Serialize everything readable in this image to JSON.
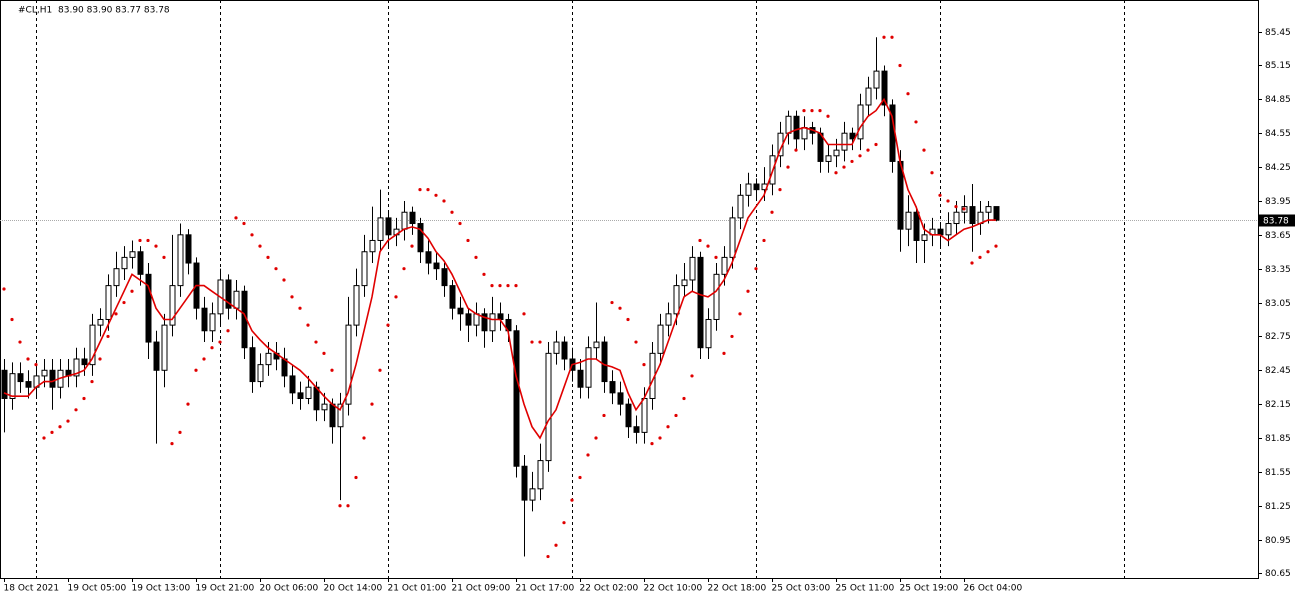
{
  "chart_data": {
    "type": "candlestick",
    "title": "#CL,H1",
    "info": "83.90 83.90 83.77 83.78",
    "xlim": [
      -0.5,
      156.75
    ],
    "ylim": [
      80.61,
      85.73
    ],
    "yticks": [
      85.45,
      85.15,
      84.85,
      84.55,
      84.25,
      83.95,
      83.65,
      83.35,
      83.05,
      82.75,
      82.45,
      82.15,
      81.85,
      81.55,
      81.25,
      80.95,
      80.65
    ],
    "xticks": [
      {
        "value": 0,
        "label": "18 Oct 2021"
      },
      {
        "value": 8,
        "label": "19 Oct 05:00"
      },
      {
        "value": 16,
        "label": "19 Oct 13:00"
      },
      {
        "value": 24,
        "label": "19 Oct 21:00"
      },
      {
        "value": 32,
        "label": "20 Oct 06:00"
      },
      {
        "value": 40,
        "label": "20 Oct 14:00"
      },
      {
        "value": 48,
        "label": "21 Oct 01:00"
      },
      {
        "value": 56,
        "label": "21 Oct 09:00"
      },
      {
        "value": 64,
        "label": "21 Oct 17:00"
      },
      {
        "value": 72,
        "label": "22 Oct 02:00"
      },
      {
        "value": 80,
        "label": "22 Oct 10:00"
      },
      {
        "value": 88,
        "label": "22 Oct 18:00"
      },
      {
        "value": 96,
        "label": "25 Oct 03:00"
      },
      {
        "value": 104,
        "label": "25 Oct 11:00"
      },
      {
        "value": 112,
        "label": "25 Oct 19:00"
      },
      {
        "value": 120,
        "label": "26 Oct 04:00"
      }
    ],
    "vgrid": [
      4,
      27,
      48,
      71,
      94,
      117,
      140
    ],
    "last_price": 83.78,
    "up_color": "#ffffff",
    "down_color": "#000000",
    "open": [
      82.45,
      82.2,
      82.42,
      82.35,
      82.3,
      82.4,
      82.45,
      82.3,
      82.45,
      82.4,
      82.55,
      82.5,
      82.85,
      82.9,
      83.2,
      83.35,
      83.45,
      83.5,
      83.3,
      82.7,
      82.45,
      82.85,
      83.2,
      83.65,
      83.4,
      83.0,
      82.8,
      82.95,
      83.25,
      83.0,
      83.15,
      82.65,
      82.35,
      82.5,
      82.6,
      82.55,
      82.4,
      82.25,
      82.2,
      82.3,
      82.1,
      82.15,
      81.95,
      82.15,
      82.85,
      83.2,
      83.5,
      83.6,
      83.8,
      83.65,
      83.7,
      83.85,
      83.75,
      83.5,
      83.4,
      83.35,
      83.2,
      83.0,
      82.95,
      82.85,
      82.95,
      82.8,
      82.95,
      82.9,
      82.8,
      81.6,
      81.3,
      81.4,
      81.65,
      82.6,
      82.7,
      82.55,
      82.45,
      82.3,
      82.65,
      82.7,
      82.35,
      82.25,
      82.15,
      81.95,
      81.9,
      82.2,
      82.6,
      82.85,
      82.95,
      83.2,
      83.25,
      83.45,
      82.65,
      82.9,
      83.3,
      83.45,
      83.8,
      84.0,
      84.1,
      84.05,
      84.1,
      84.35,
      84.55,
      84.7,
      84.5,
      84.6,
      84.55,
      84.3,
      84.35,
      84.4,
      84.55,
      84.5,
      84.8,
      84.95,
      85.1,
      84.8,
      84.3,
      83.7,
      83.85,
      83.6,
      83.65,
      83.7,
      83.65,
      83.75,
      83.85,
      83.9,
      83.75,
      83.85,
      83.9
    ],
    "high": [
      82.55,
      82.52,
      82.52,
      82.45,
      82.5,
      82.55,
      82.55,
      82.55,
      82.55,
      82.65,
      82.65,
      82.95,
      83.0,
      83.3,
      83.5,
      83.55,
      83.6,
      83.55,
      83.4,
      82.8,
      82.95,
      83.65,
      83.75,
      83.7,
      83.45,
      83.1,
      83.05,
      83.35,
      83.3,
      83.25,
      83.2,
      82.75,
      82.6,
      82.7,
      82.7,
      82.65,
      82.5,
      82.35,
      82.4,
      82.35,
      82.25,
      82.2,
      82.25,
      83.1,
      83.35,
      83.65,
      83.9,
      84.05,
      83.85,
      83.8,
      83.95,
      83.9,
      83.8,
      83.6,
      83.5,
      83.4,
      83.25,
      83.1,
      83.0,
      83.05,
      83.0,
      83.1,
      83.05,
      82.95,
      82.85,
      81.7,
      81.55,
      81.8,
      82.7,
      82.8,
      82.75,
      82.65,
      82.55,
      82.75,
      83.05,
      82.75,
      82.45,
      82.35,
      82.2,
      82.05,
      82.3,
      82.7,
      82.95,
      83.05,
      83.3,
      83.4,
      83.55,
      83.5,
      83.0,
      83.4,
      83.55,
      83.9,
      84.1,
      84.2,
      84.15,
      84.25,
      84.45,
      84.65,
      84.75,
      84.75,
      84.7,
      84.65,
      84.6,
      84.45,
      84.5,
      84.65,
      84.6,
      84.9,
      85.05,
      85.4,
      85.15,
      84.85,
      84.4,
      84.0,
      83.9,
      83.75,
      83.8,
      83.75,
      83.85,
      83.95,
      84.0,
      84.1,
      83.95,
      83.95,
      83.9
    ],
    "low": [
      81.9,
      82.1,
      82.25,
      82.2,
      82.2,
      82.3,
      82.1,
      82.2,
      82.3,
      82.3,
      82.4,
      82.4,
      82.75,
      82.8,
      83.1,
      83.25,
      83.35,
      83.2,
      82.55,
      81.8,
      82.3,
      82.75,
      83.1,
      83.3,
      82.9,
      82.7,
      82.7,
      82.85,
      82.9,
      82.9,
      82.55,
      82.25,
      82.3,
      82.4,
      82.45,
      82.3,
      82.15,
      82.1,
      82.15,
      82.0,
      82.0,
      81.8,
      81.3,
      82.05,
      82.75,
      83.1,
      83.4,
      83.5,
      83.55,
      83.55,
      83.6,
      83.65,
      83.4,
      83.3,
      83.25,
      83.1,
      82.9,
      82.8,
      82.7,
      82.75,
      82.65,
      82.7,
      82.8,
      82.7,
      81.5,
      80.8,
      81.2,
      81.3,
      81.55,
      82.5,
      82.45,
      82.35,
      82.2,
      82.2,
      82.55,
      82.25,
      82.15,
      82.05,
      81.85,
      81.8,
      81.8,
      82.1,
      82.5,
      82.75,
      82.85,
      83.1,
      83.15,
      82.55,
      82.55,
      82.8,
      83.2,
      83.35,
      83.7,
      83.9,
      83.95,
      83.95,
      84.0,
      84.25,
      84.45,
      84.4,
      84.4,
      84.45,
      84.2,
      84.2,
      84.25,
      84.3,
      84.4,
      84.4,
      84.7,
      84.85,
      84.7,
      84.2,
      83.5,
      83.55,
      83.4,
      83.4,
      83.55,
      83.55,
      83.55,
      83.65,
      83.75,
      83.5,
      83.65,
      83.75,
      83.77
    ],
    "close": [
      82.2,
      82.42,
      82.35,
      82.3,
      82.4,
      82.45,
      82.3,
      82.45,
      82.4,
      82.55,
      82.5,
      82.85,
      82.9,
      83.2,
      83.35,
      83.45,
      83.5,
      83.3,
      82.7,
      82.45,
      82.85,
      83.2,
      83.65,
      83.4,
      83.0,
      82.8,
      82.95,
      83.25,
      83.0,
      83.15,
      82.65,
      82.35,
      82.5,
      82.6,
      82.55,
      82.4,
      82.25,
      82.2,
      82.3,
      82.1,
      82.15,
      81.95,
      82.15,
      82.85,
      83.2,
      83.5,
      83.6,
      83.8,
      83.65,
      83.7,
      83.85,
      83.75,
      83.5,
      83.4,
      83.35,
      83.2,
      83.0,
      82.95,
      82.85,
      82.95,
      82.8,
      82.95,
      82.9,
      82.8,
      81.6,
      81.3,
      81.4,
      81.65,
      82.6,
      82.7,
      82.55,
      82.45,
      82.3,
      82.65,
      82.7,
      82.35,
      82.25,
      82.15,
      81.95,
      81.9,
      82.2,
      82.6,
      82.85,
      82.95,
      83.2,
      83.25,
      83.45,
      82.65,
      82.9,
      83.3,
      83.45,
      83.8,
      84.0,
      84.1,
      84.05,
      84.1,
      84.35,
      84.55,
      84.7,
      84.5,
      84.6,
      84.55,
      84.3,
      84.35,
      84.4,
      84.55,
      84.5,
      84.8,
      84.95,
      85.1,
      84.8,
      84.3,
      83.7,
      83.85,
      83.6,
      83.65,
      83.7,
      83.65,
      83.75,
      83.85,
      83.9,
      83.75,
      83.85,
      83.9,
      83.78
    ],
    "overlays": [
      {
        "kind": "line",
        "color": "#e00000",
        "values": [
          82.25,
          82.22,
          82.22,
          82.22,
          82.3,
          82.35,
          82.35,
          82.38,
          82.4,
          82.42,
          82.45,
          82.55,
          82.7,
          82.85,
          83.0,
          83.15,
          83.3,
          83.25,
          83.2,
          83.0,
          82.9,
          82.9,
          83.0,
          83.1,
          83.2,
          83.2,
          83.15,
          83.1,
          83.05,
          83.0,
          82.95,
          82.8,
          82.72,
          82.65,
          82.6,
          82.55,
          82.5,
          82.45,
          82.38,
          82.3,
          82.22,
          82.15,
          82.1,
          82.25,
          82.5,
          82.8,
          83.1,
          83.5,
          83.6,
          83.65,
          83.7,
          83.72,
          83.7,
          83.62,
          83.5,
          83.42,
          83.3,
          83.15,
          83.0,
          82.95,
          82.92,
          82.9,
          82.9,
          82.8,
          82.4,
          82.15,
          81.95,
          81.85,
          82.0,
          82.1,
          82.3,
          82.5,
          82.52,
          82.55,
          82.55,
          82.5,
          82.48,
          82.45,
          82.25,
          82.1,
          82.2,
          82.35,
          82.5,
          82.7,
          82.9,
          83.1,
          83.15,
          83.12,
          83.1,
          83.15,
          83.25,
          83.4,
          83.6,
          83.8,
          83.9,
          84.0,
          84.2,
          84.4,
          84.55,
          84.58,
          84.6,
          84.58,
          84.55,
          84.45,
          84.45,
          84.45,
          84.45,
          84.6,
          84.7,
          84.75,
          84.85,
          84.7,
          84.3,
          84.05,
          83.9,
          83.7,
          83.65,
          83.65,
          83.6,
          83.65,
          83.7,
          83.72,
          83.75,
          83.78,
          83.78
        ]
      },
      {
        "kind": "dots",
        "color": "#e00000",
        "values": [
          83.17,
          82.9,
          82.7,
          82.55,
          82.5,
          81.85,
          81.9,
          81.95,
          82.0,
          82.1,
          82.2,
          82.35,
          82.55,
          82.75,
          82.95,
          83.05,
          83.15,
          83.6,
          83.6,
          83.55,
          83.45,
          81.8,
          81.9,
          82.15,
          82.45,
          82.55,
          82.65,
          82.7,
          82.8,
          83.8,
          83.75,
          83.65,
          83.55,
          83.45,
          83.35,
          83.25,
          83.1,
          83.0,
          82.85,
          82.7,
          82.6,
          82.45,
          81.25,
          81.25,
          81.5,
          81.85,
          82.15,
          82.45,
          82.85,
          83.1,
          83.35,
          83.55,
          84.05,
          84.05,
          84.0,
          83.95,
          83.85,
          83.75,
          83.6,
          83.45,
          83.3,
          83.2,
          83.2,
          83.2,
          83.2,
          82.95,
          82.7,
          82.7,
          80.8,
          80.9,
          81.1,
          81.3,
          81.5,
          81.7,
          81.85,
          82.05,
          83.05,
          83.0,
          82.9,
          82.7,
          82.5,
          81.8,
          81.85,
          81.95,
          82.05,
          82.2,
          82.4,
          83.6,
          83.55,
          83.45,
          82.6,
          82.75,
          82.95,
          83.15,
          83.35,
          83.6,
          83.85,
          84.05,
          84.25,
          84.4,
          84.75,
          84.75,
          84.75,
          84.7,
          84.2,
          84.25,
          84.3,
          84.35,
          84.4,
          84.45,
          85.4,
          85.4,
          85.15,
          84.9,
          84.65,
          84.4,
          84.2,
          84.0,
          83.95,
          83.9,
          83.88,
          83.4,
          83.45,
          83.5,
          83.55
        ]
      }
    ]
  }
}
